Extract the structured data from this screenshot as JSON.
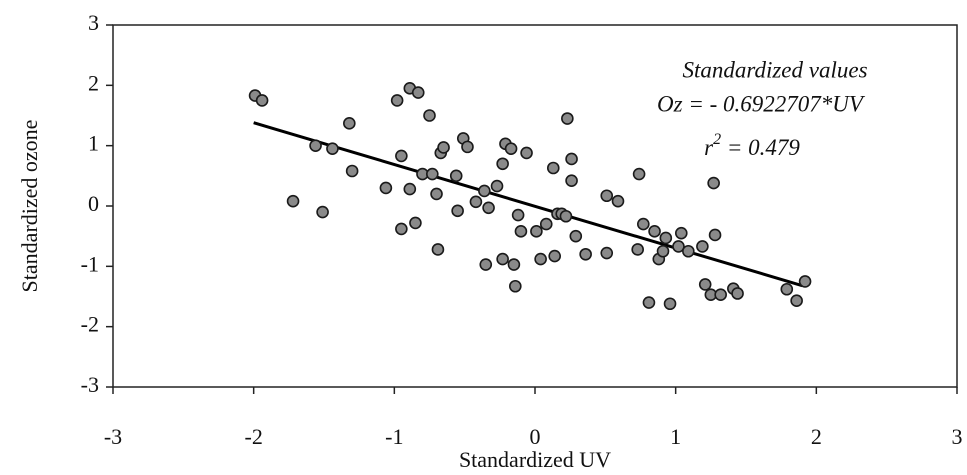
{
  "chart_data": {
    "type": "scatter",
    "xlabel": "Standardized UV",
    "ylabel": "Standardized ozone",
    "xlim": [
      -3,
      3
    ],
    "ylim": [
      -3,
      3
    ],
    "xticks": [
      -3,
      -2,
      -1,
      0,
      1,
      2,
      3
    ],
    "yticks": [
      -3,
      -2,
      -1,
      0,
      1,
      2,
      3
    ],
    "annotations": [
      "Standardized values",
      "Oz = - 0.6922707*UV",
      {
        "text": "r",
        "sup": "2",
        "rest": " = 0.479"
      }
    ],
    "series": [
      {
        "color": "#8a8a8a",
        "x": [
          -1.99,
          -1.94,
          -1.72,
          -1.56,
          -1.51,
          -1.44,
          -1.32,
          -1.3,
          -1.06,
          -0.98,
          -0.95,
          -0.95,
          -0.89,
          -0.89,
          -0.85,
          -0.83,
          -0.8,
          -0.75,
          -0.73,
          -0.7,
          -0.69,
          -0.67,
          -0.65,
          -0.56,
          -0.55,
          -0.51,
          -0.48,
          -0.42,
          -0.36,
          -0.35,
          -0.33,
          -0.27,
          -0.23,
          -0.23,
          -0.21,
          -0.17,
          -0.15,
          -0.14,
          -0.12,
          -0.1,
          -0.06,
          0.01,
          0.04,
          0.08,
          0.13,
          0.14,
          0.16,
          0.19,
          0.22,
          0.23,
          0.26,
          0.26,
          0.29,
          0.36,
          0.51,
          0.51,
          0.59,
          0.74,
          0.73,
          0.77,
          0.81,
          0.85,
          0.88,
          0.91,
          0.93,
          0.96,
          1.02,
          1.04,
          1.09,
          1.19,
          1.21,
          1.25,
          1.27,
          1.28,
          1.32,
          1.41,
          1.44,
          1.79,
          1.86,
          1.92
        ],
        "values": [
          1.83,
          1.75,
          0.08,
          1.0,
          -0.1,
          0.95,
          1.37,
          0.58,
          0.3,
          1.75,
          0.83,
          -0.38,
          1.95,
          0.28,
          -0.28,
          1.88,
          0.53,
          1.5,
          0.53,
          0.2,
          -0.72,
          0.88,
          0.97,
          0.5,
          -0.08,
          1.12,
          0.98,
          0.07,
          0.25,
          -0.97,
          -0.03,
          0.33,
          0.7,
          -0.88,
          1.03,
          0.95,
          -0.97,
          -1.33,
          -0.15,
          -0.42,
          0.88,
          -0.42,
          -0.88,
          -0.3,
          0.63,
          -0.83,
          -0.13,
          -0.13,
          -0.17,
          1.45,
          0.78,
          0.42,
          -0.5,
          -0.8,
          0.17,
          -0.78,
          0.08,
          0.53,
          -0.72,
          -0.3,
          -1.6,
          -0.42,
          -0.88,
          -0.75,
          -0.53,
          -1.62,
          -0.67,
          -0.45,
          -0.75,
          -0.67,
          -1.3,
          -1.47,
          0.38,
          -0.48,
          -1.47,
          -1.37,
          -1.45,
          -1.38,
          -1.57,
          -1.25
        ]
      }
    ],
    "fit": {
      "color": "#000000",
      "x": [
        -2,
        1.9
      ],
      "values": [
        1.38,
        -1.32
      ]
    }
  }
}
